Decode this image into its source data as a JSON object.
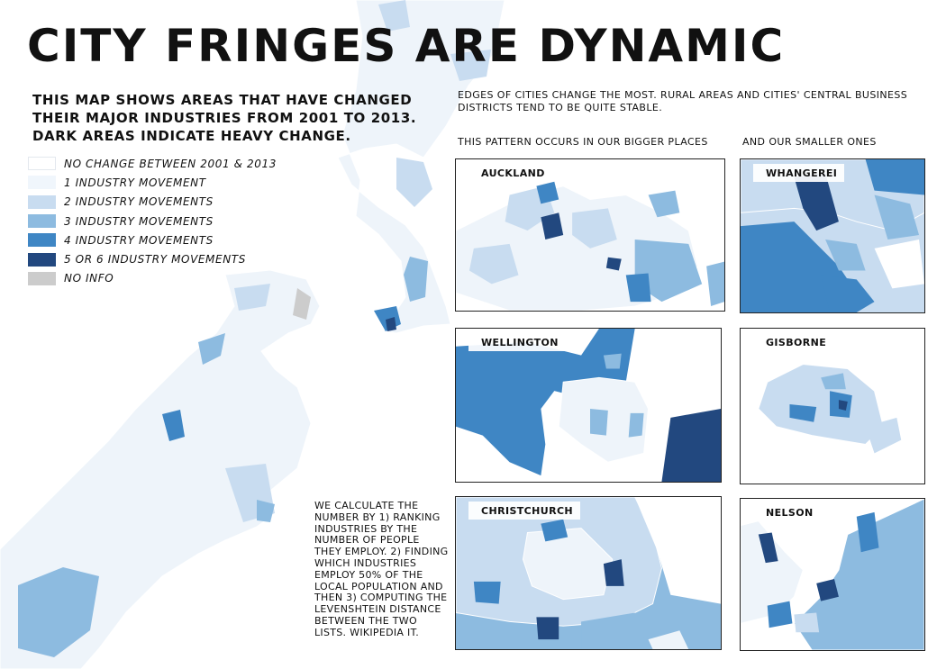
{
  "title": "CITY FRINGES ARE DYNAMIC",
  "subtitle": "THIS MAP SHOWS AREAS THAT HAVE CHANGED THEIR MAJOR INDUSTRIES FROM 2001 TO 2013. DARK AREAS INDICATE HEAVY CHANGE.",
  "legend": [
    {
      "label": "NO CHANGE BETWEEN 2001 & 2013",
      "color": "#ffffff"
    },
    {
      "label": "1 INDUSTRY MOVEMENT",
      "color": "#f0f6fc"
    },
    {
      "label": "2 INDUSTRY MOVEMENTS",
      "color": "#c8dcf0"
    },
    {
      "label": "3 INDUSTRY MOVEMENTS",
      "color": "#8dbbe0"
    },
    {
      "label": "4 INDUSTRY MOVEMENTS",
      "color": "#3f86c4"
    },
    {
      "label": "5 OR 6 INDUSTRY MOVEMENTS",
      "color": "#22487f"
    },
    {
      "label": "NO INFO",
      "color": "#cccccc"
    }
  ],
  "intro": "EDGES OF CITIES CHANGE THE MOST. RURAL AREAS AND CITIES' CENTRAL BUSINESS DISTRICTS TEND TO BE QUITE STABLE.",
  "bigger_heading": "THIS PATTERN OCCURS IN OUR BIGGER PLACES",
  "smaller_heading": "AND OUR SMALLER ONES",
  "method": "WE CALCULATE THE NUMBER BY 1) RANKING INDUSTRIES BY THE NUMBER OF PEOPLE THEY EMPLOY. 2) FINDING WHICH INDUSTRIES EMPLOY 50% OF THE LOCAL POPULATION AND THEN 3) COMPUTING THE LEVENSHTEIN DISTANCE BETWEEN THE TWO LISTS. WIKIPEDIA IT.",
  "insets": {
    "auckland": "AUCKLAND",
    "whangarei": "WHANGEREI",
    "wellington": "WELLINGTON",
    "gisborne": "GISBORNE",
    "christchurch": "CHRISTCHURCH",
    "nelson": "NELSON"
  }
}
